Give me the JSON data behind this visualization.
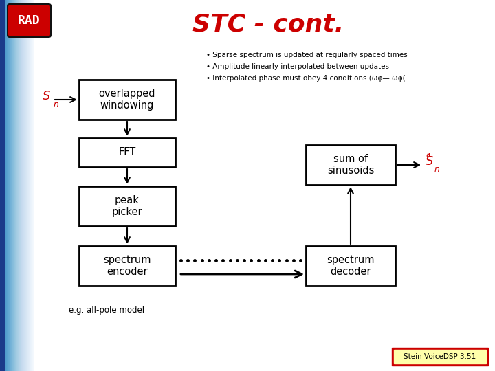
{
  "title": "STC - cont.",
  "title_color": "#cc0000",
  "title_fontsize": 26,
  "background_color": "#f0f0f0",
  "bullet1": "Sparse spectrum is updated at regularly spaced times",
  "bullet2": "Amplitude linearly interpolated between updates",
  "bullet3": "Interpolated phase must obey 4 conditions (ωφ— ωφ(",
  "box_overlapped": "overlapped\nwindowing",
  "box_fft": "FFT",
  "box_peak": "peak\npicker",
  "box_encoder": "spectrum\nencoder",
  "box_decoder": "spectrum\ndecoder",
  "box_sum": "sum of\nsinusoids",
  "note": "e.g. all-pole model",
  "footer_text": "Stein VoiceDSP 3.51"
}
